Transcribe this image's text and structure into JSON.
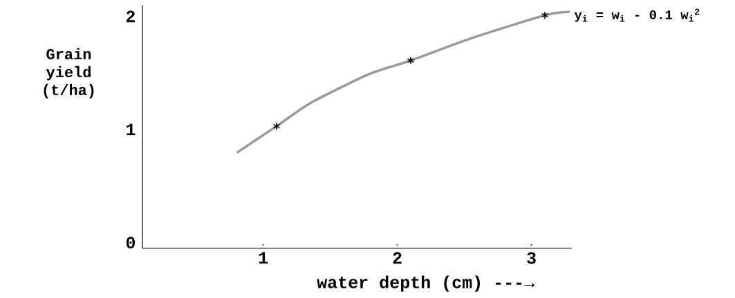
{
  "chart_data": {
    "type": "line",
    "xlabel": "water depth (cm) ---→",
    "ylabel": "Grain yield (t/ha)",
    "annotations": [
      "y$_{i}$ = w$_{i}$ - 0.1 w$_{i}$$^{2}$"
    ],
    "xlim": [
      0.1,
      3.3
    ],
    "ylim": [
      -0.05,
      2.1
    ],
    "xticks": [
      1,
      2,
      3
    ],
    "yticks": [
      0,
      1,
      2
    ],
    "grid": false,
    "series": [
      {
        "color": "#999999",
        "marker": "none",
        "x": [
          0.81,
          1.1,
          1.36,
          1.79,
          2.1,
          2.56,
          3.1,
          3.28
        ],
        "values": [
          0.8,
          1.03,
          1.24,
          1.49,
          1.61,
          1.81,
          2.01,
          2.04
        ]
      },
      {
        "type": "scatter",
        "color": "#000000",
        "marker": "cross",
        "x": [
          1.1,
          2.1,
          3.1
        ],
        "values": [
          1.03,
          1.61,
          2.01
        ]
      }
    ]
  }
}
